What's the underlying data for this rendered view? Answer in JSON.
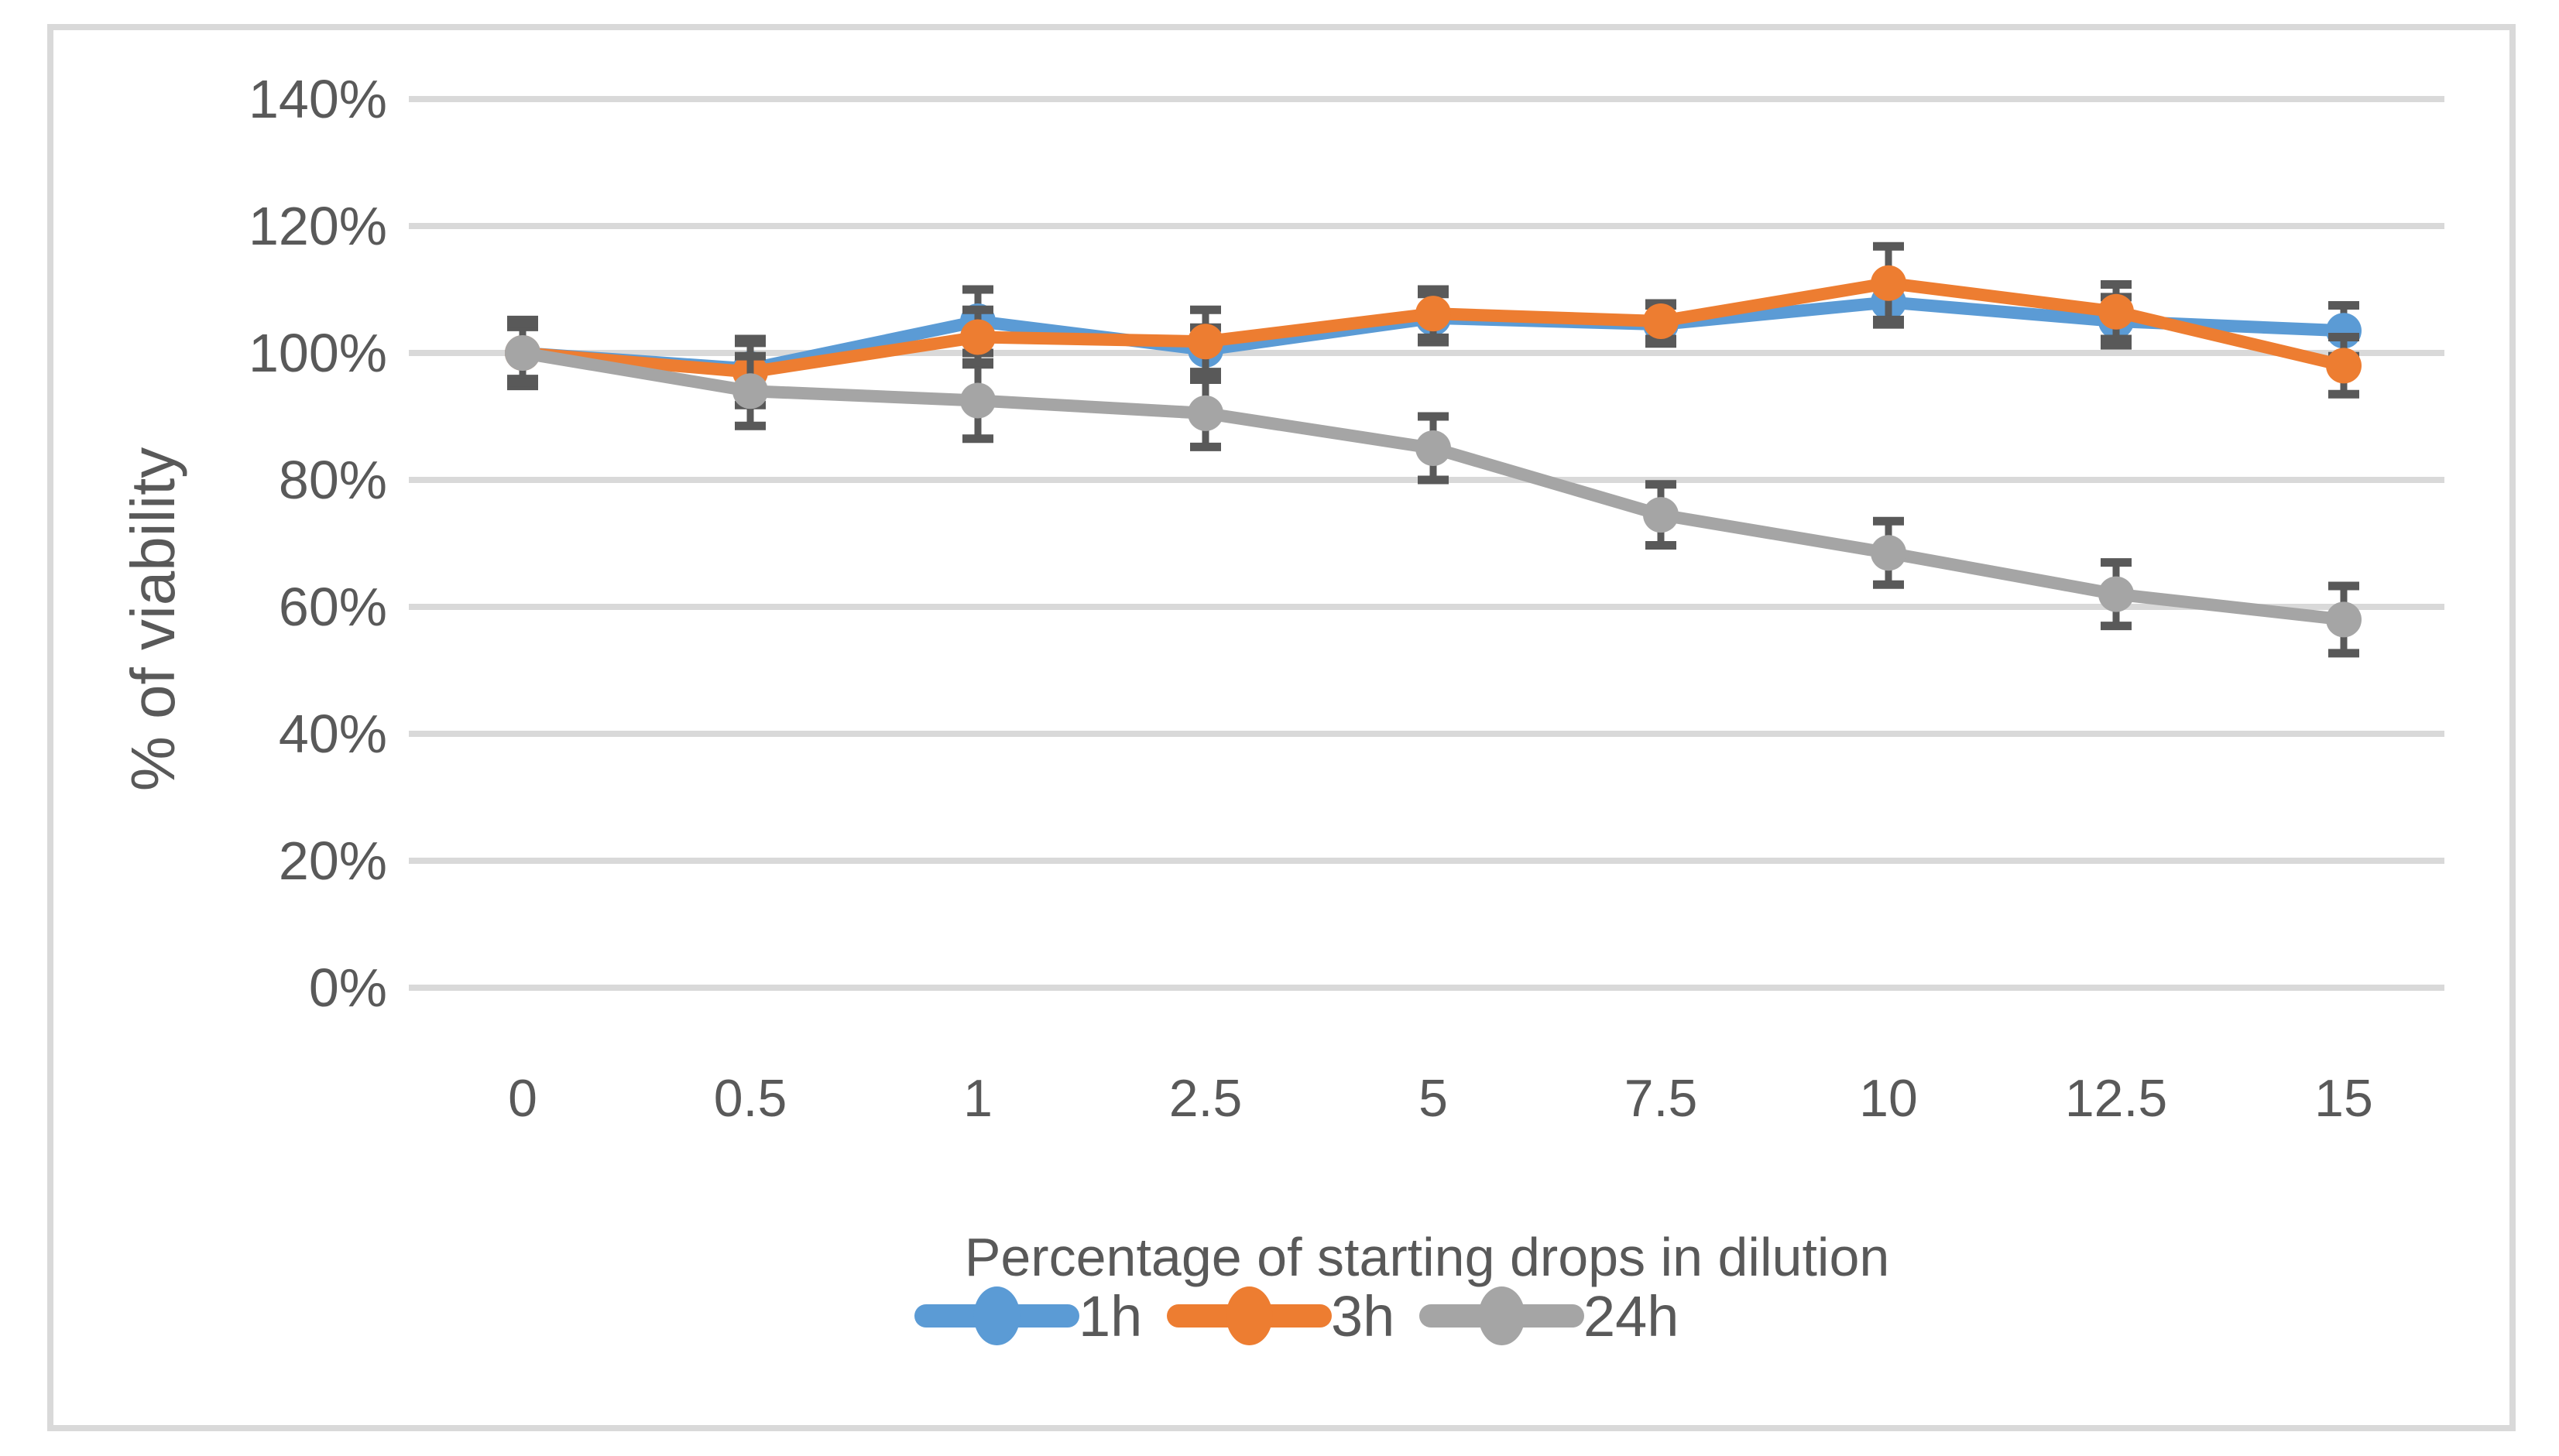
{
  "figure": {
    "background": "#ffffff",
    "border_color": "#d9d9d9"
  },
  "chart_data": {
    "type": "line",
    "title": "",
    "xlabel": "Percentage of starting drops in dilution",
    "ylabel": "% of viability",
    "categories": [
      "0",
      "0.5",
      "1",
      "2.5",
      "5",
      "7.5",
      "10",
      "12.5",
      "15"
    ],
    "y_ticks": [
      "0%",
      "20%",
      "40%",
      "60%",
      "80%",
      "100%",
      "120%",
      "140%"
    ],
    "ylim": [
      0,
      140
    ],
    "y_step": 20,
    "grid": true,
    "legend_position": "bottom",
    "gridline_color": "#d9d9d9",
    "error_bar_color": "#595959",
    "text_color": "#595959",
    "marker_shape": "circle",
    "series": [
      {
        "name": "1h",
        "color": "#5b9bd5",
        "values": [
          100,
          97.5,
          105,
          100.5,
          105.5,
          104.5,
          108,
          105,
          103.5
        ],
        "errors": [
          4.1,
          4.1,
          5.0,
          3.5,
          3.8,
          3.0,
          3.5,
          3.8,
          4.0
        ]
      },
      {
        "name": "3h",
        "color": "#ed7d31",
        "values": [
          100,
          97,
          102.5,
          101.8,
          106.2,
          105,
          111,
          106.5,
          98
        ],
        "errors": [
          5.2,
          5.2,
          4.3,
          5.0,
          3.8,
          2.8,
          5.8,
          4.3,
          4.5
        ]
      },
      {
        "name": "24h",
        "color": "#a5a5a5",
        "values": [
          100,
          94,
          92.5,
          90.5,
          85,
          74.5,
          68.5,
          62,
          58
        ],
        "errors": [
          4.6,
          5.5,
          6.0,
          5.3,
          5.0,
          4.8,
          5.0,
          5.0,
          5.3
        ]
      }
    ]
  }
}
